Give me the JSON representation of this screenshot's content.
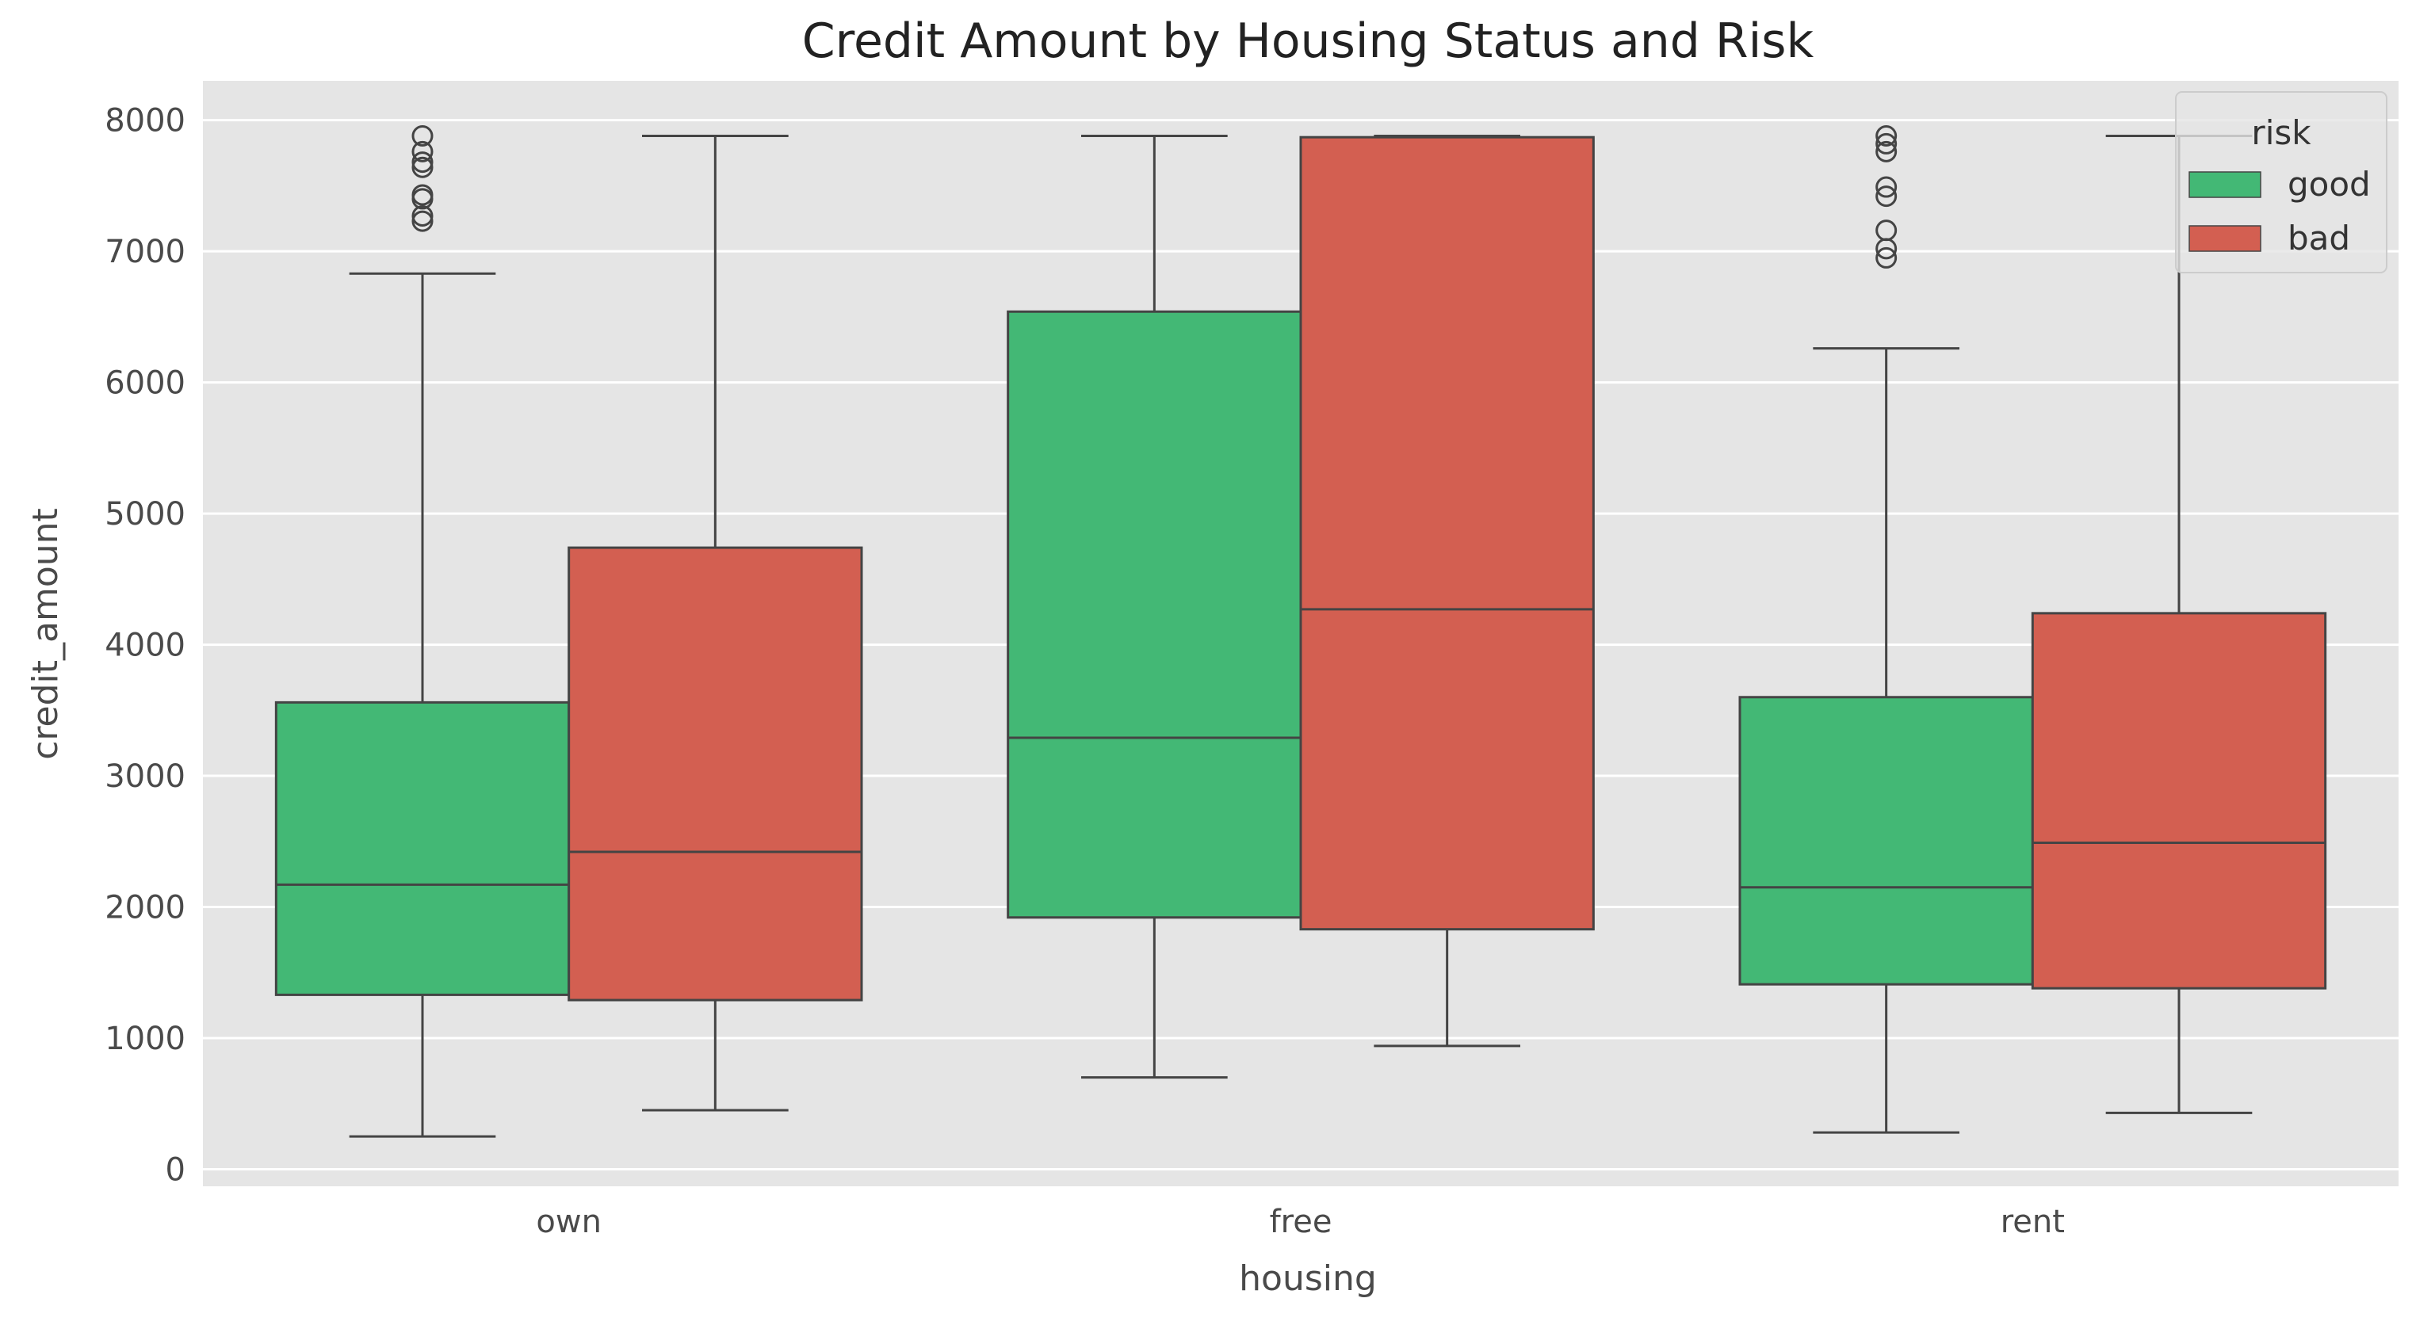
{
  "chart_data": {
    "type": "box",
    "title": "Credit Amount by Housing Status and Risk",
    "xlabel": "housing",
    "ylabel": "credit_amount",
    "categories": [
      "own",
      "free",
      "rent"
    ],
    "ylim": [
      -130,
      8300
    ],
    "yticks": [
      0,
      1000,
      2000,
      3000,
      4000,
      5000,
      6000,
      7000,
      8000
    ],
    "grid": true,
    "legend": {
      "title": "risk",
      "position": "top-right"
    },
    "colors": {
      "good": "#43b875",
      "bad": "#d35f51",
      "background": "#e5e5e5",
      "grid": "#ffffff",
      "line": "#444444"
    },
    "series": [
      {
        "name": "good",
        "color": "#43b875",
        "boxes": [
          {
            "whisker_low": 250,
            "q1": 1330,
            "median": 2170,
            "q3": 3560,
            "whisker_high": 6830,
            "outliers": [
              7230,
              7270,
              7400,
              7430,
              7640,
              7680,
              7760,
              7880
            ]
          },
          {
            "whisker_low": 700,
            "q1": 1920,
            "median": 3290,
            "q3": 6540,
            "whisker_high": 7880,
            "outliers": []
          },
          {
            "whisker_low": 280,
            "q1": 1410,
            "median": 2150,
            "q3": 3600,
            "whisker_high": 6260,
            "outliers": [
              6950,
              7020,
              7160,
              7420,
              7490,
              7760,
              7820,
              7880
            ]
          }
        ]
      },
      {
        "name": "bad",
        "color": "#d35f51",
        "boxes": [
          {
            "whisker_low": 450,
            "q1": 1290,
            "median": 2420,
            "q3": 4740,
            "whisker_high": 7880,
            "outliers": []
          },
          {
            "whisker_low": 940,
            "q1": 1830,
            "median": 4270,
            "q3": 7870,
            "whisker_high": 7880,
            "outliers": []
          },
          {
            "whisker_low": 430,
            "q1": 1380,
            "median": 2490,
            "q3": 4240,
            "whisker_high": 7880,
            "outliers": []
          }
        ]
      }
    ]
  }
}
